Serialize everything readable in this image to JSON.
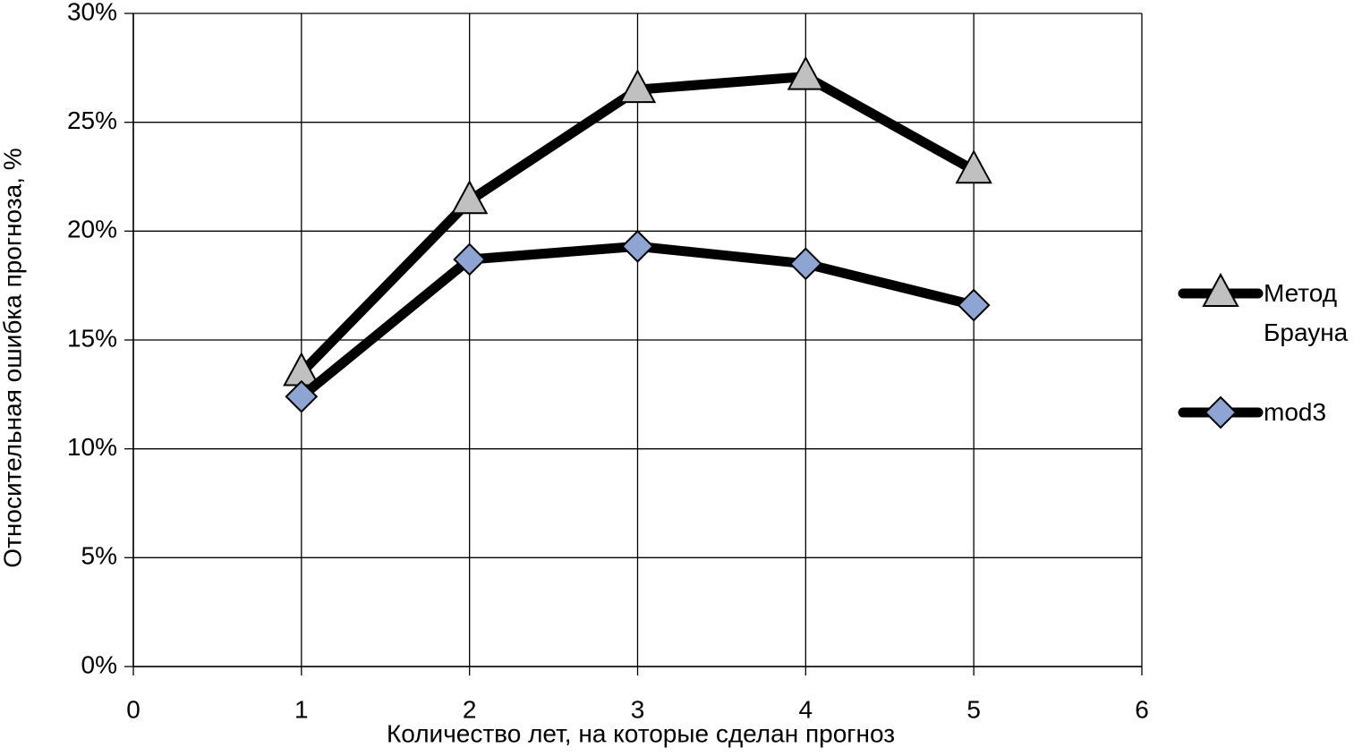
{
  "chart_data": {
    "type": "line",
    "x_label": "Количество лет, на которые сделан прогноз",
    "y_label": "Относительная ошибка прогноза, %",
    "x": [
      1,
      2,
      3,
      4,
      5
    ],
    "series": [
      {
        "name": "Метод Брауна",
        "color": "#000000",
        "marker": "triangle",
        "marker_color": "#c0c0c0",
        "values": [
          13.5,
          21.4,
          26.5,
          27.1,
          22.8
        ]
      },
      {
        "name": "mod3",
        "color": "#000000",
        "marker": "diamond",
        "marker_color": "#8ea4d2",
        "values": [
          12.4,
          18.7,
          19.3,
          18.5,
          16.6
        ]
      }
    ],
    "xlim": [
      0,
      6
    ],
    "xticks": [
      0,
      1,
      2,
      3,
      4,
      5,
      6
    ],
    "ylim": [
      0,
      30
    ],
    "yticks": [
      {
        "value": 0,
        "label": "0%"
      },
      {
        "value": 5,
        "label": "5%"
      },
      {
        "value": 10,
        "label": "10%"
      },
      {
        "value": 15,
        "label": "15%"
      },
      {
        "value": 20,
        "label": "20%"
      },
      {
        "value": 25,
        "label": "25%"
      },
      {
        "value": 30,
        "label": "30%"
      }
    ],
    "grid": true,
    "legend": "right"
  }
}
